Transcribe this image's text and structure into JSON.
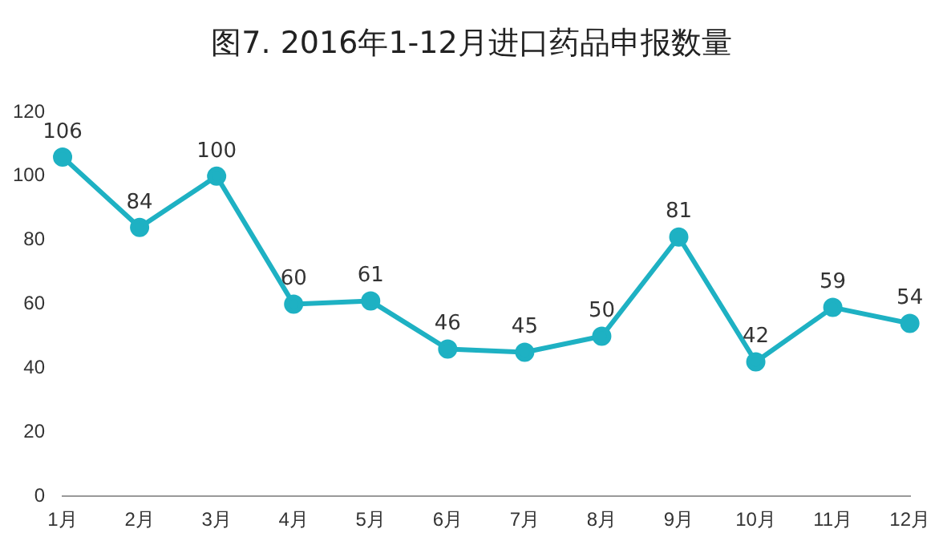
{
  "chart_data": {
    "type": "line",
    "title": "图7. 2016年1-12月进口药品申报数量",
    "categories": [
      "1月",
      "2月",
      "3月",
      "4月",
      "5月",
      "6月",
      "7月",
      "8月",
      "9月",
      "10月",
      "11月",
      "12月"
    ],
    "series": [
      {
        "color": "#1eb1c3",
        "values": [
          106,
          84,
          100,
          60,
          61,
          46,
          45,
          50,
          81,
          42,
          59,
          54
        ]
      }
    ],
    "ylim": [
      0,
      120
    ],
    "yticks": [
      0,
      20,
      40,
      60,
      80,
      100,
      120
    ],
    "grid": false,
    "legend": false,
    "marker": "circle",
    "line_style": "solid",
    "data_labels": true
  }
}
